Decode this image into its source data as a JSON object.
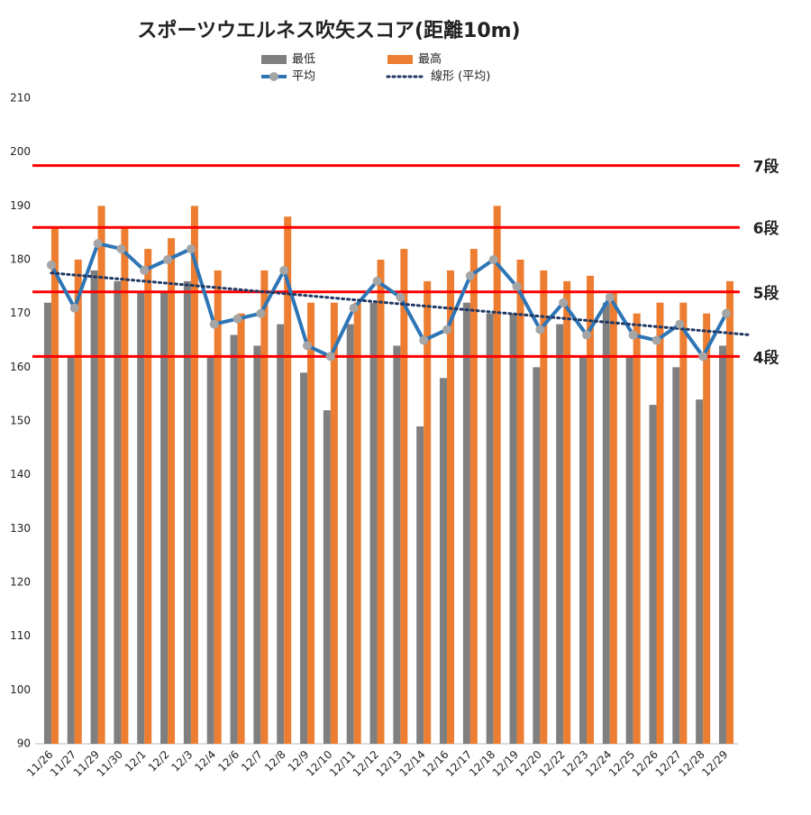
{
  "chart_data": {
    "type": "bar",
    "title": "スポーツウエルネス吹矢スコア(距離10m)",
    "categories": [
      "11/26",
      "11/27",
      "11/29",
      "11/30",
      "12/1",
      "12/2",
      "12/3",
      "12/4",
      "12/6",
      "12/7",
      "12/8",
      "12/9",
      "12/10",
      "12/11",
      "12/12",
      "12/13",
      "12/14",
      "12/16",
      "12/17",
      "12/18",
      "12/19",
      "12/20",
      "12/22",
      "12/23",
      "12/24",
      "12/25",
      "12/26",
      "12/27",
      "12/28",
      "12/29"
    ],
    "series": [
      {
        "name": "最低",
        "type": "bar",
        "color": "#7f7f7f",
        "values": [
          172,
          162,
          178,
          176,
          174,
          174,
          176,
          162,
          166,
          164,
          168,
          159,
          152,
          168,
          172,
          164,
          149,
          158,
          172,
          170,
          170,
          160,
          168,
          162,
          172,
          162,
          153,
          160,
          154,
          164
        ]
      },
      {
        "name": "最高",
        "type": "bar",
        "color": "#ed7d31",
        "values": [
          186,
          180,
          190,
          186,
          182,
          184,
          190,
          178,
          170,
          178,
          188,
          172,
          172,
          172,
          180,
          182,
          176,
          178,
          182,
          190,
          180,
          178,
          176,
          177,
          174,
          170,
          172,
          172,
          170,
          176
        ]
      },
      {
        "name": "平均",
        "type": "line",
        "color": "#2e75b6",
        "marker_color": "#a5a5a5",
        "values": [
          179,
          171,
          183,
          182,
          178,
          180,
          182,
          168,
          169,
          170,
          178,
          164,
          162,
          171,
          176,
          173,
          165,
          167,
          177,
          180,
          175,
          167,
          172,
          166,
          173,
          166,
          165,
          168,
          162,
          170
        ]
      }
    ],
    "trendline": {
      "name": "線形 (平均)",
      "color": "#1f3864"
    },
    "reference_lines": [
      {
        "label": "7段",
        "value": 197.5
      },
      {
        "label": "6段",
        "value": 186
      },
      {
        "label": "5段",
        "value": 174
      },
      {
        "label": "4段",
        "value": 162
      }
    ],
    "reference_color": "#ff0000",
    "ylim": [
      90,
      210
    ],
    "yticks": [
      90,
      100,
      110,
      120,
      130,
      140,
      150,
      160,
      170,
      180,
      190,
      200,
      210
    ],
    "grid": false
  }
}
